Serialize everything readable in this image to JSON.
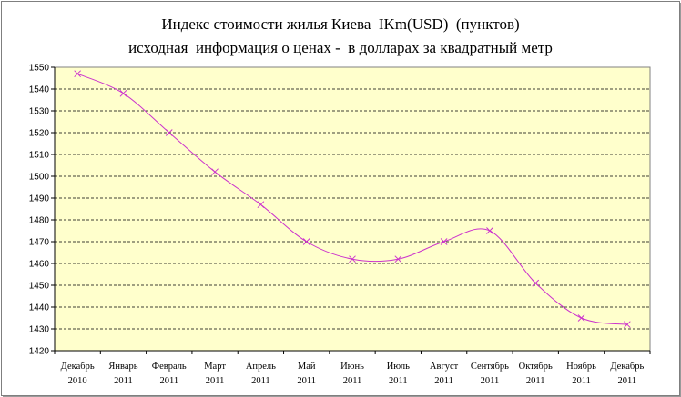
{
  "title": {
    "line1": "Индекс стоимости жилья Киева  IKm(USD)  (пунктов)",
    "line2": "исходная  информация о ценах -  в долларах за квадратный метр"
  },
  "colors": {
    "plot_background": "#ffffcc",
    "series_line": "#cc33cc",
    "grid": "#000000"
  },
  "chart_data": {
    "type": "line",
    "title": "Индекс стоимости жилья Киева  IKm(USD)  (пунктов)",
    "subtitle": "исходная  информация о ценах -  в долларах за квадратный метр",
    "xlabel": "",
    "ylabel": "",
    "categories": [
      [
        "Декабрь",
        "2010"
      ],
      [
        "Январь",
        "2011"
      ],
      [
        "Февраль",
        "2011"
      ],
      [
        "Март",
        "2011"
      ],
      [
        "Апрель",
        "2011"
      ],
      [
        "Май",
        "2011"
      ],
      [
        "Июнь",
        "2011"
      ],
      [
        "Июль",
        "2011"
      ],
      [
        "Август",
        "2011"
      ],
      [
        "Сентябрь",
        "2011"
      ],
      [
        "Октябрь",
        "2011"
      ],
      [
        "Ноябрь",
        "2011"
      ],
      [
        "Декабрь",
        "2011"
      ]
    ],
    "series": [
      {
        "values": [
          1547,
          1538,
          1520,
          1502,
          1487,
          1470,
          1462,
          1462,
          1470,
          1475,
          1451,
          1435,
          1432
        ]
      }
    ],
    "ylim": [
      1420,
      1550
    ],
    "yticks": [
      1420,
      1430,
      1440,
      1450,
      1460,
      1470,
      1480,
      1490,
      1500,
      1510,
      1520,
      1530,
      1540,
      1550
    ],
    "grid": "horizontal dashed",
    "legend": "none",
    "marker": "x",
    "smoothed": true
  }
}
